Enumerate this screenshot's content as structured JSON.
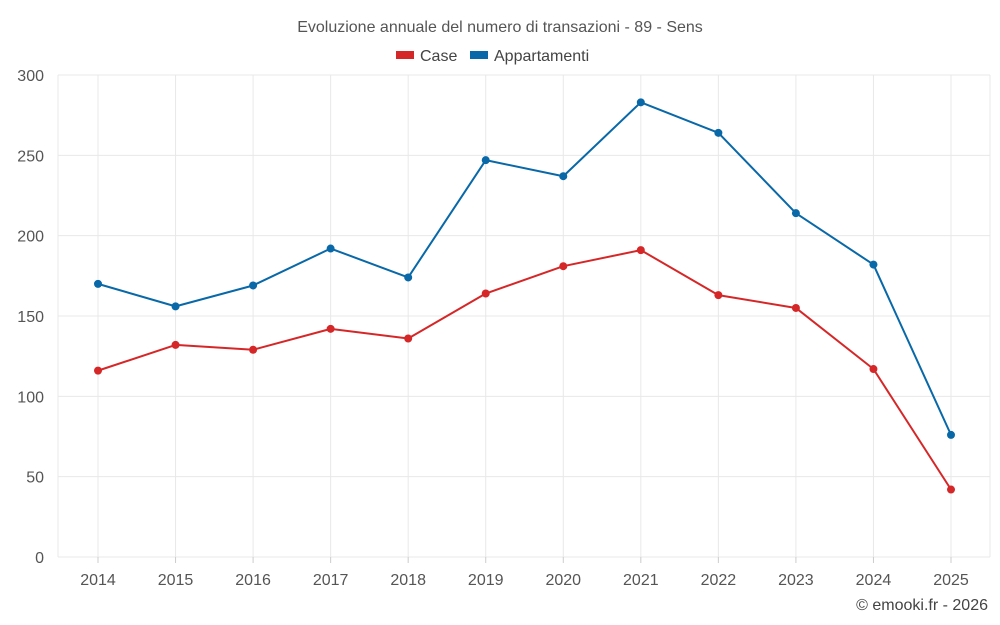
{
  "chart_data": {
    "type": "line",
    "title": "Evoluzione annuale del numero di transazioni - 89 - Sens",
    "categories": [
      "2014",
      "2015",
      "2016",
      "2017",
      "2018",
      "2019",
      "2020",
      "2021",
      "2022",
      "2023",
      "2024",
      "2025"
    ],
    "series": [
      {
        "name": "Case",
        "color": "#d62728",
        "values": [
          116,
          132,
          129,
          142,
          136,
          164,
          181,
          191,
          163,
          155,
          117,
          42
        ]
      },
      {
        "name": "Appartamenti",
        "color": "#0868a8",
        "values": [
          170,
          156,
          169,
          192,
          174,
          247,
          237,
          283,
          264,
          214,
          182,
          76
        ]
      }
    ],
    "ylim": [
      0,
      300
    ],
    "yticks": [
      0,
      50,
      100,
      150,
      200,
      250,
      300
    ],
    "xlabel": "",
    "ylabel": "",
    "grid": true,
    "legend": "top-center"
  },
  "credit": "© emooki.fr - 2026"
}
